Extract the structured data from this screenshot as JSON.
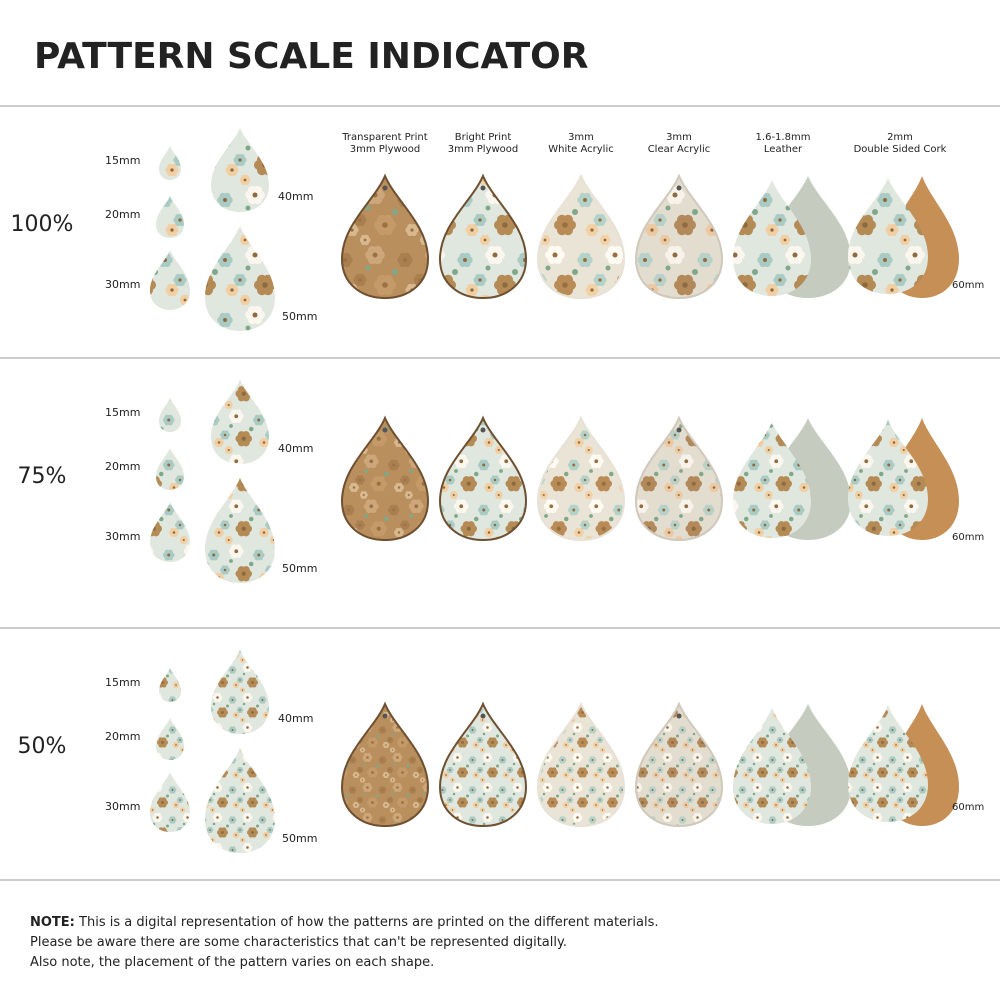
{
  "header": {
    "title": "PATTERN SCALE INDICATOR"
  },
  "materials": [
    {
      "line1": "Transparent Print",
      "line2": "3mm Plywood"
    },
    {
      "line1": "Bright Print",
      "line2": "3mm Plywood"
    },
    {
      "line1": "3mm",
      "line2": "White Acrylic"
    },
    {
      "line1": "3mm",
      "line2": "Clear Acrylic"
    },
    {
      "line1": "1.6-1.8mm",
      "line2": "Leather"
    },
    {
      "line1": "2mm",
      "line2": "Double Sided Cork"
    }
  ],
  "rows": [
    {
      "scale": "100%",
      "sizes": [
        "15mm",
        "20mm",
        "30mm",
        "40mm",
        "50mm"
      ],
      "sample_size": "60mm"
    },
    {
      "scale": "75%",
      "sizes": [
        "15mm",
        "20mm",
        "30mm",
        "40mm",
        "50mm"
      ],
      "sample_size": "60mm"
    },
    {
      "scale": "50%",
      "sizes": [
        "15mm",
        "20mm",
        "30mm",
        "40mm",
        "50mm"
      ],
      "sample_size": "60mm"
    }
  ],
  "note": {
    "label": "NOTE:",
    "lines": [
      "This is a digital representation of how the patterns are printed on the different materials.",
      "Please be aware there are some characteristics that can't be represented digitally.",
      "Also note, the placement of the pattern varies on each shape."
    ]
  }
}
